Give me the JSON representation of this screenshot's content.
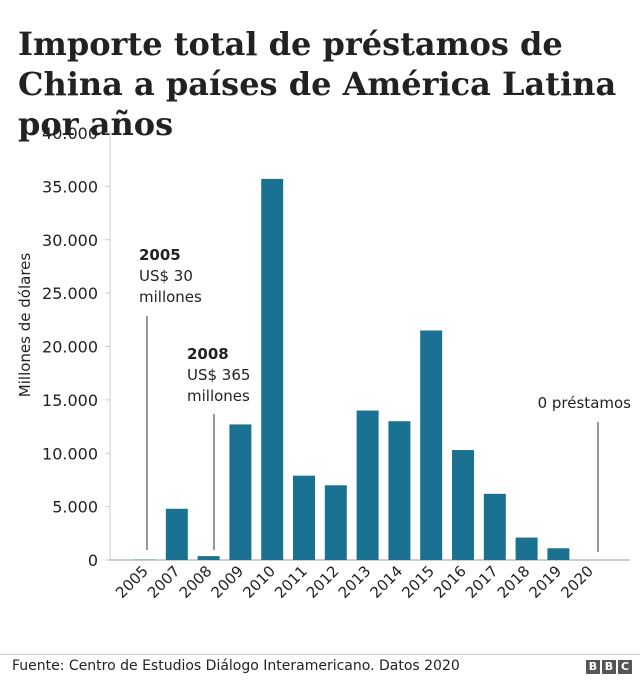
{
  "chart_data": {
    "type": "bar",
    "title": "Importe total de préstamos de China a países de América Latina por años",
    "ylabel": "Millones de dólares",
    "xlabel": "",
    "categories": [
      "2005",
      "2007",
      "2008",
      "2009",
      "2010",
      "2011",
      "2012",
      "2013",
      "2014",
      "2015",
      "2016",
      "2017",
      "2018",
      "2019",
      "2020"
    ],
    "values": [
      30,
      4800,
      365,
      12700,
      35700,
      7900,
      7000,
      14000,
      13000,
      21500,
      10300,
      6200,
      2100,
      1100,
      0
    ],
    "ylim": [
      0,
      40000
    ],
    "yticks": [
      0,
      5000,
      10000,
      15000,
      20000,
      25000,
      30000,
      35000,
      40000
    ],
    "ytick_labels": [
      "0",
      "5.000",
      "10.000",
      "15.000",
      "20.000",
      "25.000",
      "30.000",
      "35.000",
      "40.000"
    ],
    "bar_color": "#1a7191",
    "grid": false,
    "annotations": [
      {
        "category": "2005",
        "bold": "2005",
        "lines": [
          "US$ 30",
          "millones"
        ]
      },
      {
        "category": "2008",
        "bold": "2008",
        "lines": [
          "US$ 365",
          "millones"
        ]
      },
      {
        "category": "2020",
        "bold": "",
        "lines": [
          "0 préstamos"
        ]
      }
    ]
  },
  "footer": {
    "source": "Fuente: Centro de Estudios Diálogo Interamericano. Datos 2020",
    "logo": [
      "B",
      "B",
      "C"
    ]
  }
}
